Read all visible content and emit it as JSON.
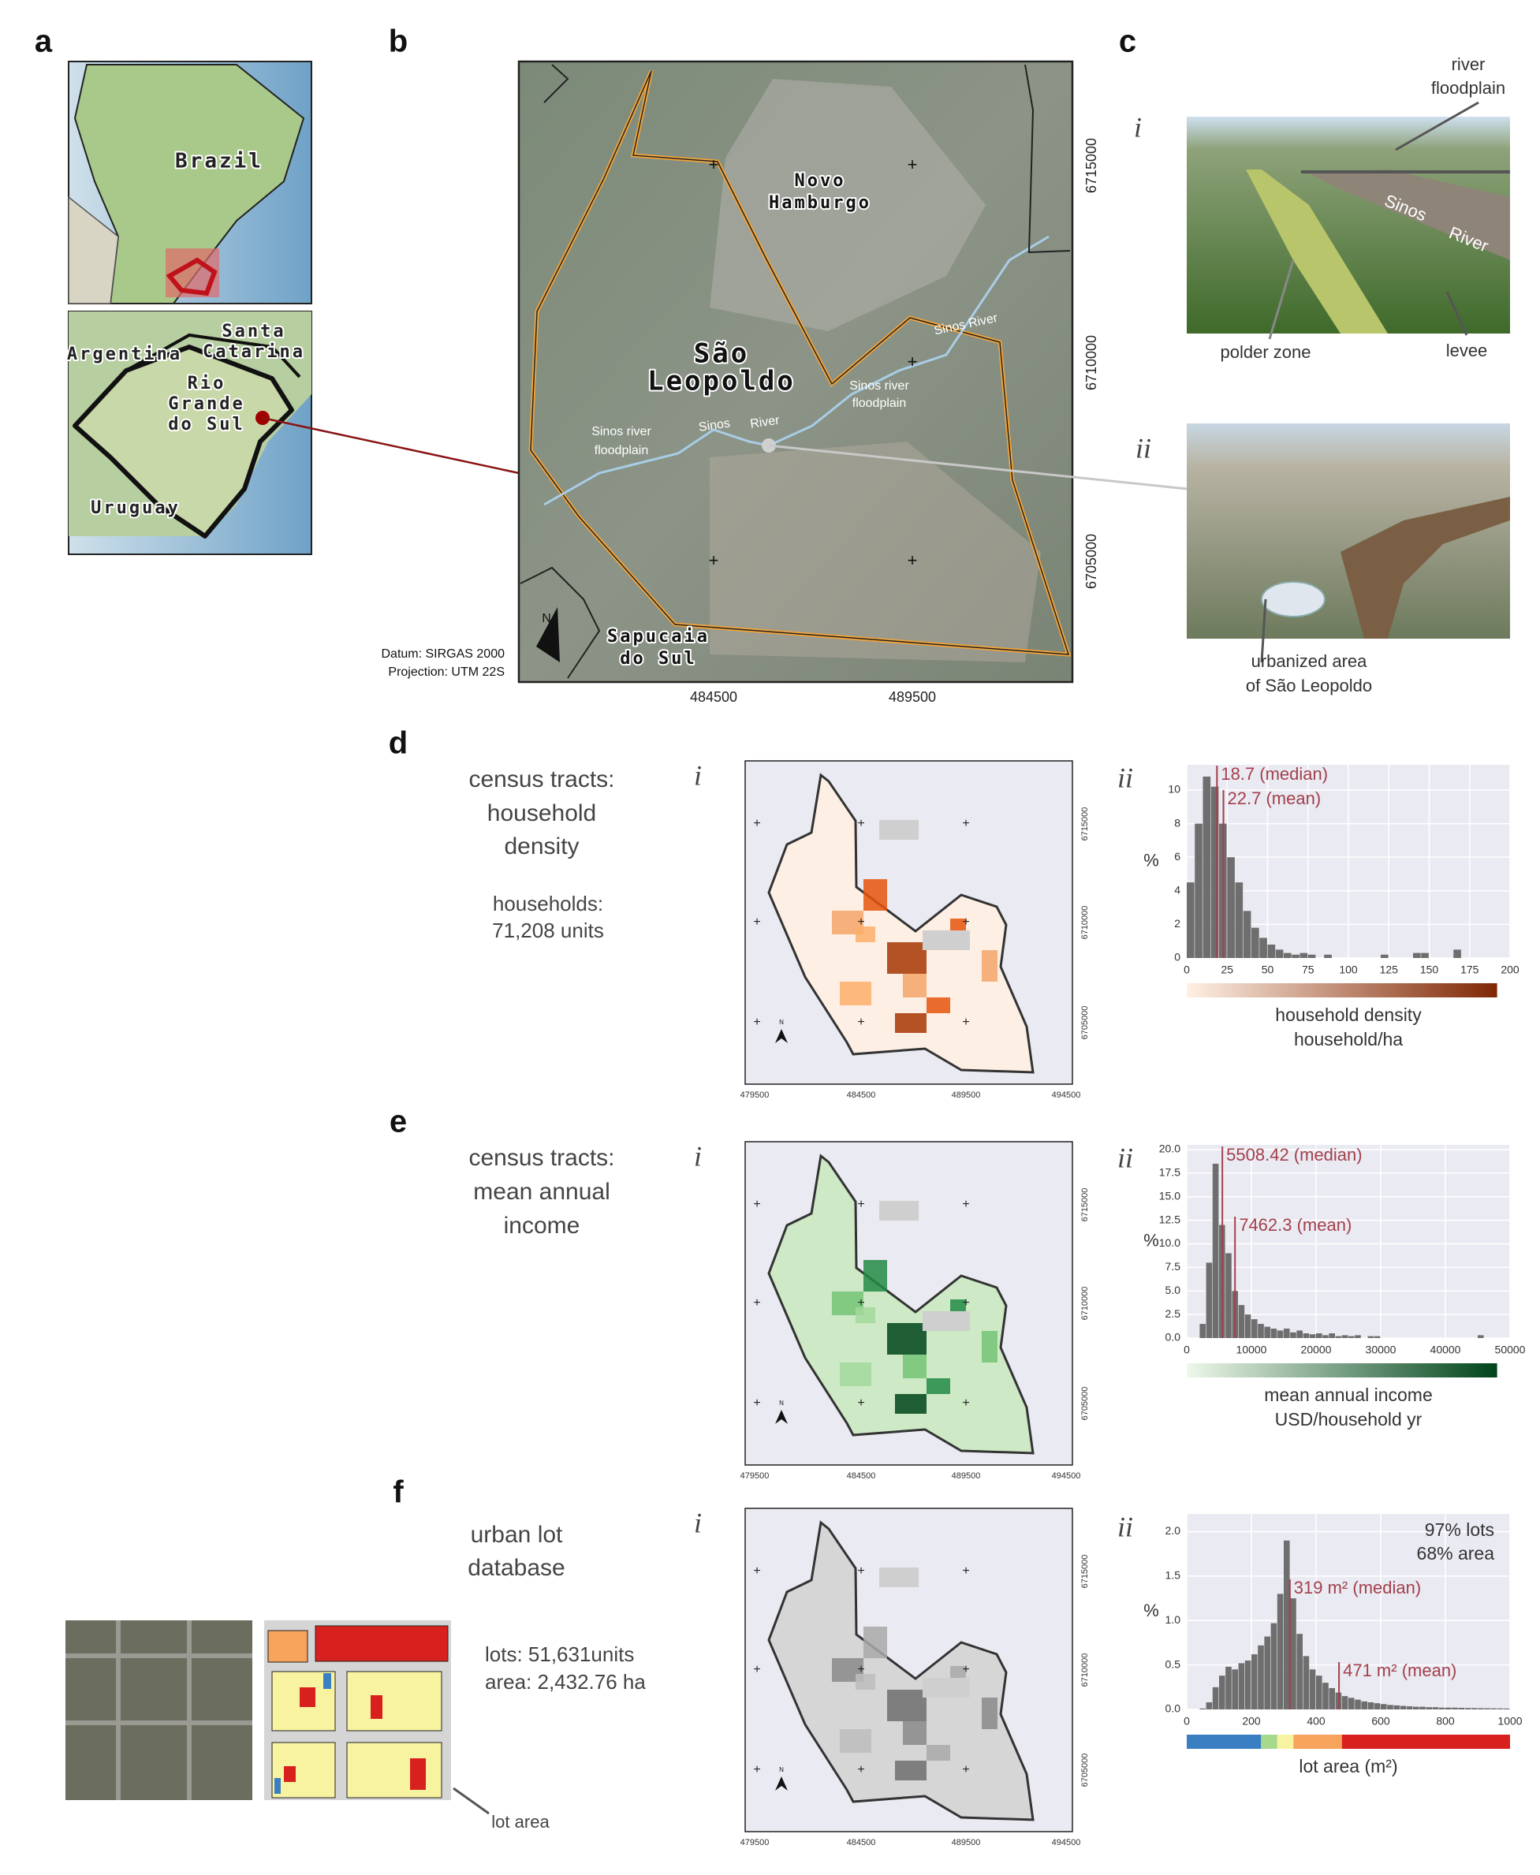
{
  "panel_labels": [
    "a",
    "b",
    "c",
    "d",
    "e",
    "f"
  ],
  "a": {
    "labels": [
      "Brazil",
      "Santa",
      "Catarina",
      "Argentina",
      "Rio",
      "Grande",
      "do Sul",
      "Uruguay"
    ]
  },
  "b": {
    "labels": [
      "Novo",
      "Hamburgo",
      "São",
      "Leopoldo",
      "Sinos river",
      "floodplain",
      "Sinos River",
      "Sinos",
      "River",
      "Sinos river",
      "floodplain",
      "Sapucaia",
      "do Sul"
    ],
    "north": "N",
    "xticks": [
      484500,
      489500
    ],
    "yticks": [
      6715000,
      6710000,
      6705000
    ],
    "datum": [
      "Datum: SIRGAS 2000",
      "Projection: UTM 22S"
    ]
  },
  "c": {
    "i": {
      "numeral": "i",
      "labels": [
        "river",
        "floodplain",
        "Sinos",
        "River",
        "polder zone",
        "levee"
      ]
    },
    "ii": {
      "numeral": "ii",
      "labels": [
        "urbanized area",
        "of São Leopoldo"
      ]
    }
  },
  "d": {
    "title_lines": [
      "census tracts:",
      "household",
      "density"
    ],
    "stats": [
      "households:",
      "71,208 units"
    ],
    "map": {
      "numeral": "i",
      "north": "N",
      "xticks": [
        479500,
        484500,
        489500,
        494500
      ],
      "yticks": [
        6715000,
        6710000,
        6705000
      ]
    }
  },
  "e": {
    "title_lines": [
      "census tracts:",
      "mean annual",
      "income"
    ],
    "map": {
      "numeral": "i",
      "north": "N",
      "xticks": [
        479500,
        484500,
        489500,
        494500
      ],
      "yticks": [
        6715000,
        6710000,
        6705000
      ]
    }
  },
  "f": {
    "title_lines": [
      "urban lot",
      "database"
    ],
    "stats": [
      "lots: 51,631units",
      "area: 2,432.76 ha"
    ],
    "inset_label": "lot area",
    "map": {
      "numeral": "i",
      "north": "N",
      "xticks": [
        479500,
        484500,
        489500,
        494500
      ],
      "yticks": [
        6715000,
        6710000,
        6705000
      ]
    }
  },
  "chart_data": [
    {
      "type": "histogram",
      "numeral": "ii",
      "color": "#6e6e6e",
      "grid": true,
      "ylabel": "%",
      "xlabel": [
        "household density",
        "household/ha"
      ],
      "colorbar": [
        "#fff0e4",
        "#7f2704"
      ],
      "bins": [
        0,
        5,
        10,
        15,
        20,
        25,
        30,
        35,
        40,
        45,
        50,
        55,
        60,
        65,
        70,
        75,
        80,
        85,
        90,
        95,
        100,
        105,
        110,
        115,
        120,
        125,
        130,
        135,
        140,
        145,
        150,
        155,
        160,
        165,
        170,
        175,
        180,
        185,
        190,
        195,
        200
      ],
      "counts": [
        4.5,
        8,
        10.8,
        10.2,
        8,
        6,
        4.5,
        2.8,
        1.8,
        1.2,
        0.8,
        0.5,
        0.3,
        0.2,
        0.3,
        0.2,
        0,
        0.2,
        0,
        0,
        0,
        0,
        0,
        0,
        0.2,
        0,
        0,
        0,
        0.3,
        0.3,
        0,
        0,
        0,
        0.5,
        0,
        0,
        0,
        0,
        0,
        0
      ],
      "xlim": [
        0,
        200
      ],
      "ylim": [
        0,
        11.5
      ],
      "xticks": [
        0,
        25,
        50,
        75,
        100,
        125,
        150,
        175,
        200
      ],
      "yticks": [
        0,
        2,
        4,
        6,
        8,
        10
      ],
      "annotation_color": "#a3404c",
      "annotations": [
        {
          "value": 18.7,
          "label": "18.7 (median)"
        },
        {
          "value": 22.7,
          "label": "22.7 (mean)"
        }
      ]
    },
    {
      "type": "histogram",
      "numeral": "ii",
      "color": "#6e6e6e",
      "grid": true,
      "ylabel": "%",
      "xlabel": [
        "mean annual income",
        "USD/household yr"
      ],
      "colorbar": [
        "#eef8ea",
        "#00441b"
      ],
      "bins": [
        0,
        1000,
        2000,
        3000,
        4000,
        5000,
        6000,
        7000,
        8000,
        9000,
        10000,
        11000,
        12000,
        13000,
        14000,
        15000,
        16000,
        17000,
        18000,
        19000,
        20000,
        21000,
        22000,
        23000,
        24000,
        25000,
        26000,
        27000,
        28000,
        29000,
        30000,
        31000,
        32000,
        33000,
        34000,
        35000,
        36000,
        37000,
        38000,
        39000,
        40000,
        41000,
        42000,
        43000,
        44000,
        45000,
        46000,
        47000,
        48000,
        49000,
        50000
      ],
      "counts": [
        0,
        0,
        1.5,
        8,
        18.5,
        12,
        9,
        5,
        3.5,
        2.5,
        2,
        1.5,
        1.2,
        1,
        0.8,
        1,
        0.6,
        0.8,
        0.5,
        0.4,
        0.5,
        0.3,
        0.5,
        0.2,
        0.3,
        0.2,
        0.3,
        0,
        0.2,
        0.2,
        0,
        0,
        0,
        0,
        0,
        0,
        0,
        0,
        0,
        0,
        0,
        0,
        0,
        0,
        0,
        0.3,
        0,
        0,
        0,
        0
      ],
      "xlim": [
        0,
        50000
      ],
      "ylim": [
        0,
        20.5
      ],
      "xticks": [
        0,
        10000,
        20000,
        30000,
        40000,
        50000
      ],
      "yticks": [
        {
          "value": 0,
          "label": "0.0"
        },
        2.5,
        {
          "value": 5,
          "label": "5.0"
        },
        7.5,
        {
          "value": 10,
          "label": "10.0"
        },
        12.5,
        {
          "value": 15,
          "label": "15.0"
        },
        17.5,
        {
          "value": 20,
          "label": "20.0"
        }
      ],
      "annotation_color": "#a3404c",
      "annotations": [
        {
          "value": 5508.42,
          "label": "5508.42 (median)"
        },
        {
          "value": 7462.3,
          "label": "7462.3 (mean)"
        }
      ]
    },
    {
      "type": "histogram",
      "numeral": "ii",
      "color": "#6e6e6e",
      "grid": true,
      "ylabel": "%",
      "xlabel": [
        "lot area (m²)"
      ],
      "notes": [
        "97% lots",
        "68% area"
      ],
      "colorbar_segments": [
        {
          "from": 0,
          "to": 230,
          "color": "#3a7fc1"
        },
        {
          "from": 230,
          "to": 280,
          "color": "#a6d98c"
        },
        {
          "from": 280,
          "to": 330,
          "color": "#f8f3a0"
        },
        {
          "from": 330,
          "to": 480,
          "color": "#f6a35b"
        },
        {
          "from": 480,
          "to": 1000,
          "color": "#d8211f"
        }
      ],
      "bins": [
        0,
        20,
        40,
        60,
        80,
        100,
        120,
        140,
        160,
        180,
        200,
        220,
        240,
        260,
        280,
        300,
        320,
        340,
        360,
        380,
        400,
        420,
        440,
        460,
        480,
        500,
        520,
        540,
        560,
        580,
        600,
        620,
        640,
        660,
        680,
        700,
        720,
        740,
        760,
        780,
        800,
        820,
        840,
        860,
        880,
        900,
        920,
        940,
        960,
        980,
        1000
      ],
      "counts": [
        0,
        0,
        0.01,
        0.08,
        0.25,
        0.38,
        0.48,
        0.45,
        0.52,
        0.55,
        0.62,
        0.72,
        0.82,
        0.97,
        1.3,
        1.9,
        1.25,
        0.85,
        0.6,
        0.45,
        0.38,
        0.3,
        0.24,
        0.19,
        0.15,
        0.13,
        0.11,
        0.09,
        0.08,
        0.07,
        0.06,
        0.05,
        0.045,
        0.04,
        0.035,
        0.03,
        0.03,
        0.025,
        0.025,
        0.02,
        0.02,
        0.02,
        0.018,
        0.016,
        0.015,
        0.014,
        0.013,
        0.012,
        0.011,
        0.01
      ],
      "xlim": [
        0,
        1000
      ],
      "ylim": [
        0,
        2.2
      ],
      "xticks": [
        0,
        200,
        400,
        600,
        800,
        1000
      ],
      "yticks": [
        {
          "value": 0,
          "label": "0.0"
        },
        0.5,
        {
          "value": 1,
          "label": "1.0"
        },
        1.5,
        {
          "value": 2,
          "label": "2.0"
        }
      ],
      "annotation_color": "#a3404c",
      "annotations": [
        {
          "value": 319,
          "label": "319 m² (median)"
        },
        {
          "value": 471,
          "label": "471 m² (mean)"
        }
      ]
    }
  ]
}
